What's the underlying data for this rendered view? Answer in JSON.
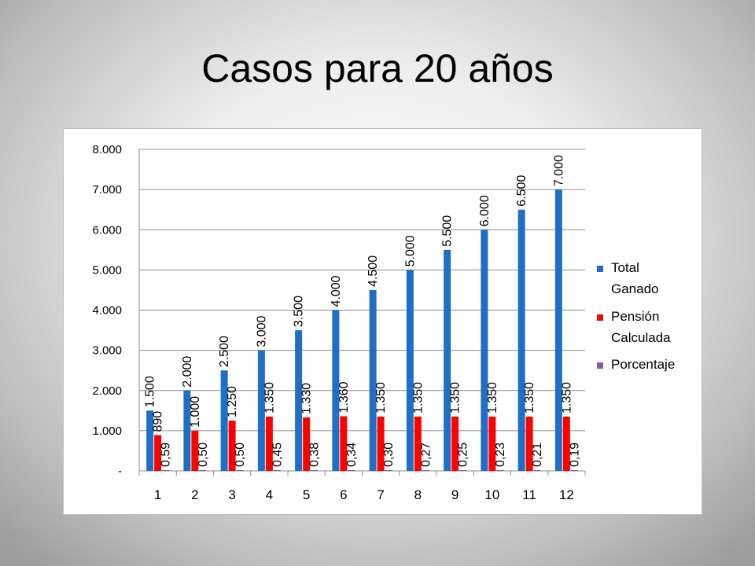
{
  "slide": {
    "title": "Casos para 20 años"
  },
  "chart_data": {
    "type": "bar",
    "title": "",
    "xlabel": "",
    "ylabel": "",
    "categories": [
      "1",
      "2",
      "3",
      "4",
      "5",
      "6",
      "7",
      "8",
      "9",
      "10",
      "11",
      "12"
    ],
    "ylim": [
      0,
      8000
    ],
    "y_ticks": [
      0,
      1000,
      2000,
      3000,
      4000,
      5000,
      6000,
      7000,
      8000
    ],
    "y_tick_labels": [
      "-",
      "1.000",
      "2.000",
      "3.000",
      "4.000",
      "5.000",
      "6.000",
      "7.000",
      "8.000"
    ],
    "grid": true,
    "legend_position": "right",
    "series": [
      {
        "name": "Total Ganado",
        "color": "#1F6FC6",
        "values": [
          1500,
          2000,
          2500,
          3000,
          3500,
          4000,
          4500,
          5000,
          5500,
          6000,
          6500,
          7000
        ],
        "labels": [
          "1.500",
          "2.000",
          "2.500",
          "3.000",
          "3.500",
          "4.000",
          "4.500",
          "5.000",
          "5.500",
          "6.000",
          "6.500",
          "7.000"
        ]
      },
      {
        "name": "Pensión Calculada",
        "color": "#FF0000",
        "values": [
          890,
          1000,
          1250,
          1350,
          1330,
          1360,
          1350,
          1350,
          1350,
          1350,
          1350,
          1350
        ],
        "labels": [
          "890",
          "1.000",
          "1.250",
          "1.350",
          "1.330",
          "1.360",
          "1.350",
          "1.350",
          "1.350",
          "1.350",
          "1.350",
          "1.350"
        ]
      },
      {
        "name": "Porcentaje",
        "color": "#8064A2",
        "values": [
          0.59,
          0.5,
          0.5,
          0.45,
          0.38,
          0.34,
          0.3,
          0.27,
          0.25,
          0.23,
          0.21,
          0.19
        ],
        "labels": [
          "0,59",
          "0,50",
          "0,50",
          "0,45",
          "0,38",
          "0,34",
          "0,30",
          "0,27",
          "0,25",
          "0,23",
          "0,21",
          "0,19"
        ]
      }
    ],
    "legend": [
      {
        "line1": "Total",
        "line2": "Ganado"
      },
      {
        "line1": "Pensión",
        "line2": "Calculada"
      },
      {
        "line1": "Porcentaje",
        "line2": ""
      }
    ]
  }
}
